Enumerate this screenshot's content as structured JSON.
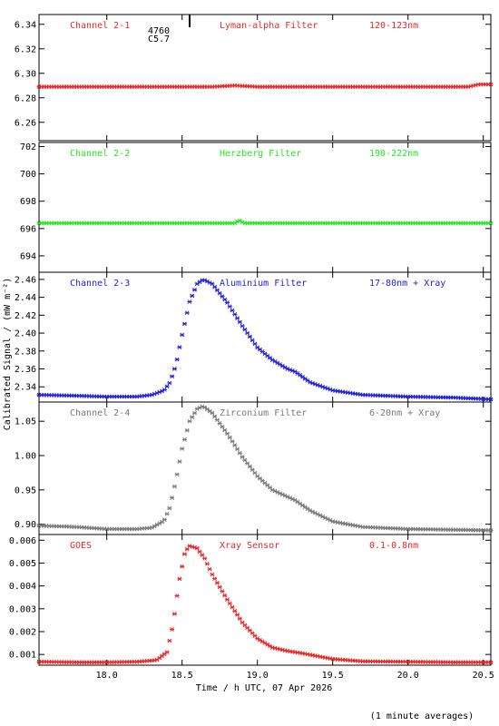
{
  "footer_note": "(1 minute averages)",
  "chart_data": [
    {
      "type": "scatter",
      "channel_label": "Channel 2-1",
      "filter_label": "Lyman-alpha Filter",
      "range_label": "120-123nm",
      "color": "#e8282a",
      "xlim": [
        17.55,
        20.55
      ],
      "ylim": [
        6.245,
        6.348
      ],
      "yticks": [
        6.26,
        6.28,
        6.3,
        6.32,
        6.34
      ],
      "ytick_labels": [
        "6.26",
        "6.28",
        "6.30",
        "6.32",
        "6.34"
      ],
      "annotation": {
        "x": 18.55,
        "number": "4760",
        "class": "C5.7"
      },
      "series": [
        {
          "x": [
            17.55,
            18.0,
            18.5,
            18.7,
            18.85,
            19.0,
            19.5,
            20.0,
            20.4,
            20.47,
            20.55
          ],
          "y": [
            6.289,
            6.289,
            6.289,
            6.289,
            6.29,
            6.289,
            6.289,
            6.289,
            6.289,
            6.291,
            6.291
          ]
        }
      ]
    },
    {
      "type": "scatter",
      "channel_label": "Channel 2-2",
      "filter_label": "Herzberg Filter",
      "range_label": "190-222nm",
      "color": "#22e822",
      "xlim": [
        17.55,
        20.55
      ],
      "ylim": [
        692.8,
        702.3
      ],
      "yticks": [
        694,
        696,
        698,
        700,
        702
      ],
      "ytick_labels": [
        "694",
        "696",
        "698",
        "700",
        "702"
      ],
      "series": [
        {
          "x": [
            17.55,
            18.5,
            18.85,
            18.88,
            18.91,
            19.5,
            20.55
          ],
          "y": [
            696.4,
            696.4,
            696.4,
            696.6,
            696.4,
            696.4,
            696.4
          ]
        }
      ]
    },
    {
      "type": "scatter",
      "channel_label": "Channel 2-3",
      "filter_label": "Aluminium Filter",
      "range_label": "17-80nm + Xray",
      "color": "#2222d8",
      "xlim": [
        17.55,
        20.55
      ],
      "ylim": [
        2.323,
        2.468
      ],
      "yticks": [
        2.34,
        2.36,
        2.38,
        2.4,
        2.42,
        2.44,
        2.46
      ],
      "ytick_labels": [
        "2.34",
        "2.36",
        "2.38",
        "2.40",
        "2.42",
        "2.44",
        "2.46"
      ],
      "series": [
        {
          "x": [
            17.55,
            17.8,
            18.0,
            18.2,
            18.3,
            18.38,
            18.42,
            18.46,
            18.5,
            18.55,
            18.6,
            18.64,
            18.7,
            18.8,
            18.9,
            19.0,
            19.1,
            19.2,
            19.25,
            19.35,
            19.5,
            19.7,
            20.0,
            20.3,
            20.55
          ],
          "y": [
            2.331,
            2.33,
            2.329,
            2.329,
            2.331,
            2.336,
            2.345,
            2.365,
            2.398,
            2.435,
            2.455,
            2.46,
            2.455,
            2.434,
            2.408,
            2.384,
            2.37,
            2.36,
            2.357,
            2.345,
            2.336,
            2.331,
            2.329,
            2.328,
            2.326
          ]
        }
      ]
    },
    {
      "type": "scatter",
      "channel_label": "Channel 2-4",
      "filter_label": "Zirconium Filter",
      "range_label": "6-20nm + Xray",
      "color": "#7a7a7a",
      "xlim": [
        17.55,
        20.55
      ],
      "ylim": [
        0.885,
        1.078
      ],
      "yticks": [
        0.9,
        0.95,
        1.0,
        1.05
      ],
      "ytick_labels": [
        "0.90",
        "0.95",
        "1.00",
        "1.05"
      ],
      "series": [
        {
          "x": [
            17.55,
            17.8,
            18.0,
            18.2,
            18.3,
            18.38,
            18.42,
            18.46,
            18.5,
            18.55,
            18.6,
            18.64,
            18.7,
            18.8,
            18.9,
            19.0,
            19.1,
            19.2,
            19.25,
            19.35,
            19.5,
            19.7,
            20.0,
            20.3,
            20.55
          ],
          "y": [
            0.898,
            0.896,
            0.893,
            0.893,
            0.895,
            0.905,
            0.925,
            0.965,
            1.01,
            1.05,
            1.068,
            1.072,
            1.062,
            1.032,
            0.998,
            0.97,
            0.95,
            0.94,
            0.935,
            0.92,
            0.904,
            0.896,
            0.893,
            0.892,
            0.891
          ]
        }
      ]
    },
    {
      "type": "scatter",
      "channel_label": "GOES",
      "filter_label": "Xray Sensor",
      "range_label": "0.1-0.8nm",
      "color": "#e8282a",
      "xlim": [
        17.55,
        20.55
      ],
      "ylim": [
        0.00053,
        0.00625
      ],
      "yticks": [
        0.001,
        0.002,
        0.003,
        0.004,
        0.005,
        0.006
      ],
      "ytick_labels": [
        "0.001",
        "0.002",
        "0.003",
        "0.004",
        "0.005",
        "0.006"
      ],
      "xticks": [
        18.0,
        18.5,
        19.0,
        19.5,
        20.0,
        20.5
      ],
      "xtick_labels": [
        "18.0",
        "18.5",
        "19.0",
        "19.5",
        "20.0",
        "20.5"
      ],
      "series": [
        {
          "x": [
            17.55,
            17.8,
            18.0,
            18.2,
            18.33,
            18.4,
            18.44,
            18.48,
            18.52,
            18.55,
            18.6,
            18.65,
            18.7,
            18.8,
            18.9,
            19.0,
            19.1,
            19.2,
            19.3,
            19.5,
            19.7,
            20.0,
            20.3,
            20.55
          ],
          "y": [
            0.00068,
            0.00066,
            0.00066,
            0.00068,
            0.00075,
            0.0011,
            0.0023,
            0.0042,
            0.0055,
            0.00575,
            0.00565,
            0.0052,
            0.0045,
            0.0034,
            0.0024,
            0.0017,
            0.0013,
            0.00115,
            0.00105,
            0.0008,
            0.0007,
            0.00068,
            0.00066,
            0.00066
          ]
        }
      ]
    }
  ],
  "xlabel": "Time / h UTC, 07 Apr 2026",
  "ylabel": "Calibrated Signal / (mW m⁻²)"
}
